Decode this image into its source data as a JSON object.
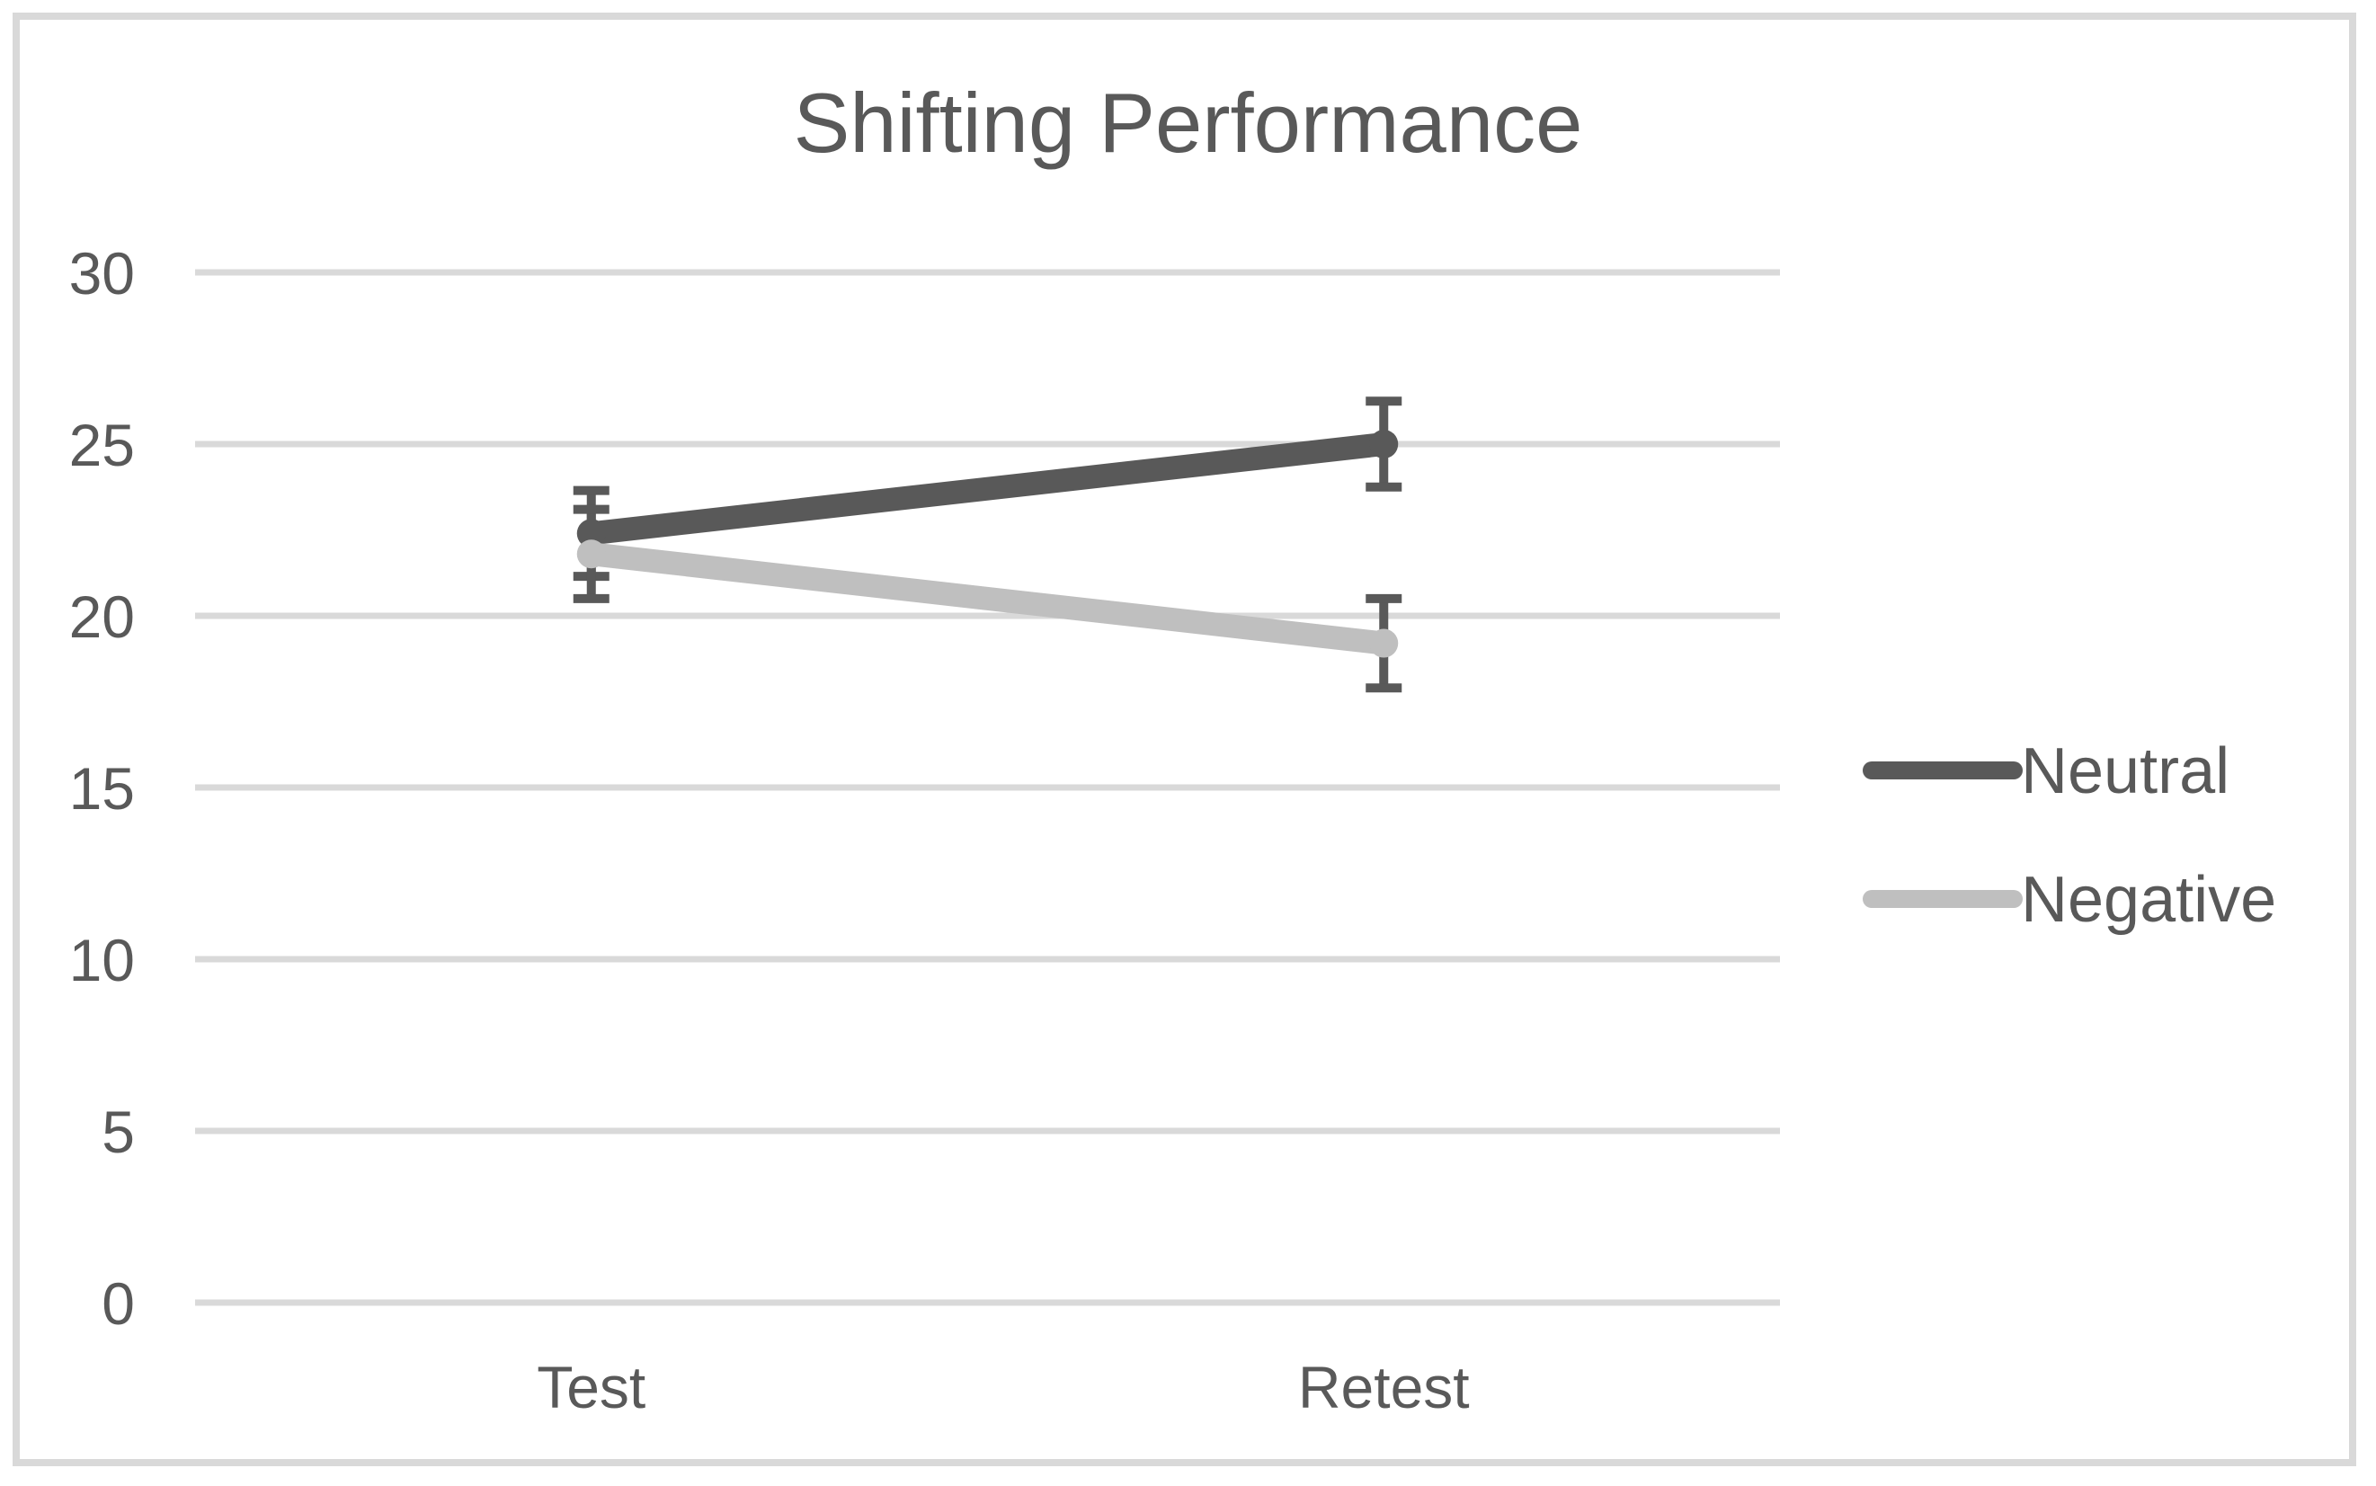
{
  "chart_data": {
    "type": "line",
    "title": "Shifting Performance",
    "categories": [
      "Test",
      "Retest"
    ],
    "series": [
      {
        "name": "Neutral",
        "color": "#595959",
        "values": [
          22.4,
          25
        ],
        "errors": [
          1.25,
          1.25
        ]
      },
      {
        "name": "Negative",
        "color": "#bfbfbf",
        "values": [
          21.8,
          19.2
        ],
        "errors": [
          1.3,
          1.3
        ]
      }
    ],
    "yticks": [
      0,
      5,
      10,
      15,
      20,
      25,
      30
    ],
    "ylim": [
      0,
      30
    ],
    "xlabel": "",
    "ylabel": "",
    "grid": true,
    "error_bars": true,
    "legend_position": "right",
    "error_bar_color": "#595959",
    "gridline_color": "#d9d9d9",
    "border_color": "#d9d9d9",
    "text_color": "#595959",
    "background_color": "#ffffff"
  }
}
